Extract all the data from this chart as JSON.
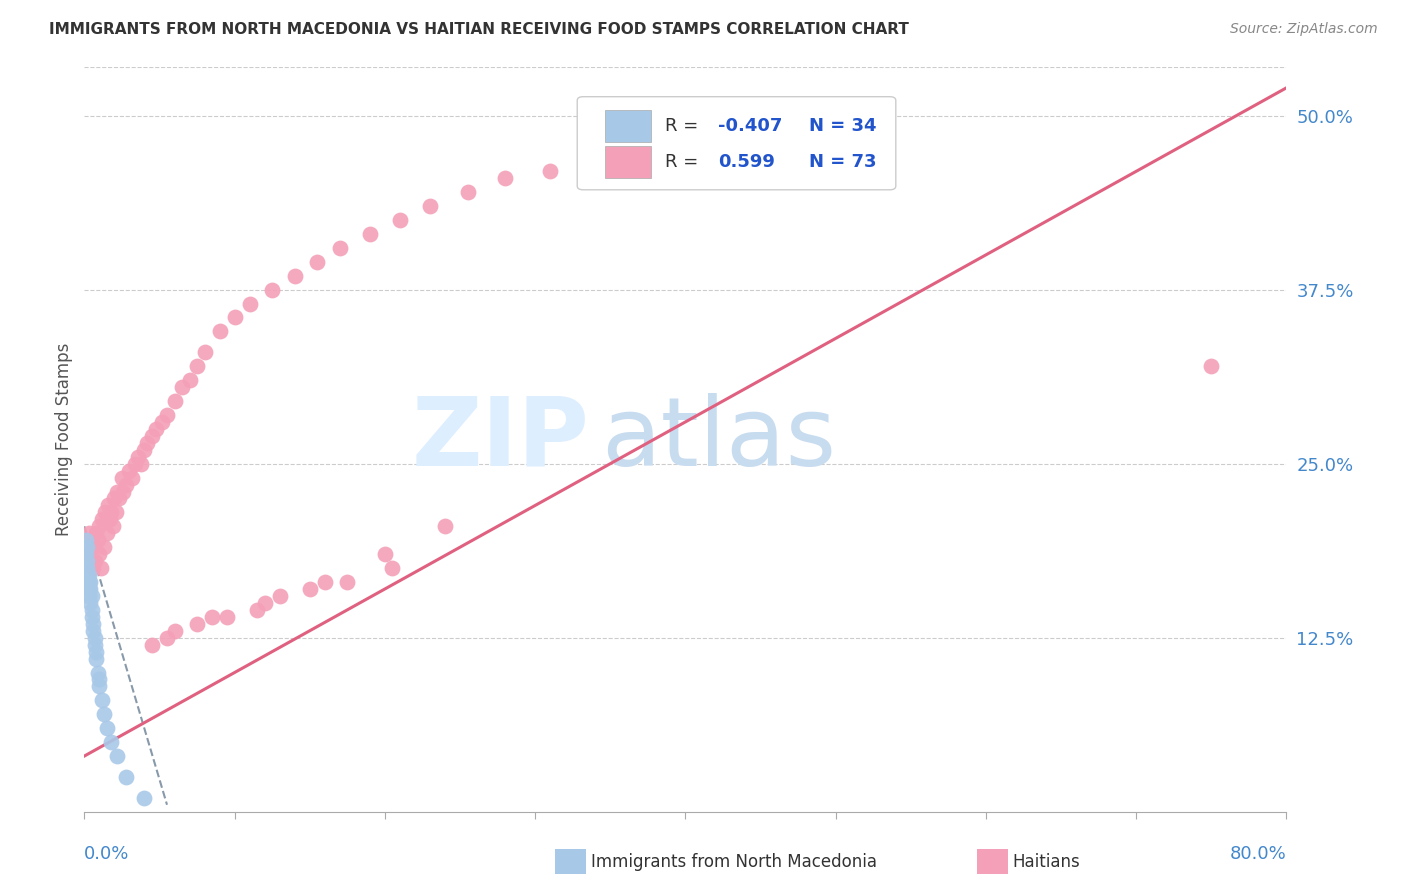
{
  "title": "IMMIGRANTS FROM NORTH MACEDONIA VS HAITIAN RECEIVING FOOD STAMPS CORRELATION CHART",
  "source": "Source: ZipAtlas.com",
  "ylabel": "Receiving Food Stamps",
  "y_ticks_right": [
    0.125,
    0.25,
    0.375,
    0.5
  ],
  "y_tick_labels_right": [
    "12.5%",
    "25.0%",
    "37.5%",
    "50.0%"
  ],
  "xlim": [
    0.0,
    0.8
  ],
  "ylim": [
    0.0,
    0.535
  ],
  "blue_color": "#a8c8e8",
  "pink_color": "#f4a0b8",
  "blue_line_color": "#8899aa",
  "pink_line_color": "#e06080",
  "legend_text_color": "#2255cc",
  "axis_label_color": "#4488cc",
  "background_color": "#ffffff",
  "grid_color": "#cccccc",
  "title_color": "#333333",
  "watermark_color": "#ddeeff",
  "blue_trend_x": [
    0.0,
    0.055
  ],
  "blue_trend_y": [
    0.205,
    0.005
  ],
  "pink_trend_x": [
    0.0,
    0.8
  ],
  "pink_trend_y": [
    0.04,
    0.52
  ],
  "blue_scatter_x": [
    0.001,
    0.001,
    0.001,
    0.001,
    0.002,
    0.002,
    0.002,
    0.002,
    0.003,
    0.003,
    0.003,
    0.003,
    0.004,
    0.004,
    0.004,
    0.005,
    0.005,
    0.005,
    0.006,
    0.006,
    0.007,
    0.007,
    0.008,
    0.008,
    0.009,
    0.01,
    0.01,
    0.012,
    0.013,
    0.015,
    0.018,
    0.022,
    0.028,
    0.04
  ],
  "blue_scatter_y": [
    0.175,
    0.185,
    0.195,
    0.17,
    0.165,
    0.18,
    0.19,
    0.175,
    0.16,
    0.17,
    0.165,
    0.155,
    0.15,
    0.16,
    0.165,
    0.14,
    0.155,
    0.145,
    0.13,
    0.135,
    0.12,
    0.125,
    0.11,
    0.115,
    0.1,
    0.09,
    0.095,
    0.08,
    0.07,
    0.06,
    0.05,
    0.04,
    0.025,
    0.01
  ],
  "pink_scatter_x": [
    0.003,
    0.004,
    0.005,
    0.006,
    0.006,
    0.007,
    0.008,
    0.009,
    0.01,
    0.01,
    0.011,
    0.012,
    0.013,
    0.014,
    0.015,
    0.016,
    0.017,
    0.018,
    0.019,
    0.02,
    0.021,
    0.022,
    0.023,
    0.025,
    0.026,
    0.028,
    0.03,
    0.032,
    0.034,
    0.036,
    0.038,
    0.04,
    0.042,
    0.045,
    0.048,
    0.052,
    0.055,
    0.06,
    0.065,
    0.07,
    0.075,
    0.08,
    0.09,
    0.1,
    0.11,
    0.125,
    0.14,
    0.155,
    0.17,
    0.19,
    0.21,
    0.23,
    0.255,
    0.28,
    0.175,
    0.205,
    0.13,
    0.15,
    0.095,
    0.115,
    0.34,
    0.31,
    0.38,
    0.06,
    0.075,
    0.085,
    0.12,
    0.16,
    0.2,
    0.24,
    0.75,
    0.045,
    0.055
  ],
  "pink_scatter_y": [
    0.2,
    0.185,
    0.195,
    0.175,
    0.19,
    0.18,
    0.2,
    0.195,
    0.185,
    0.205,
    0.175,
    0.21,
    0.19,
    0.215,
    0.2,
    0.22,
    0.21,
    0.215,
    0.205,
    0.225,
    0.215,
    0.23,
    0.225,
    0.24,
    0.23,
    0.235,
    0.245,
    0.24,
    0.25,
    0.255,
    0.25,
    0.26,
    0.265,
    0.27,
    0.275,
    0.28,
    0.285,
    0.295,
    0.305,
    0.31,
    0.32,
    0.33,
    0.345,
    0.355,
    0.365,
    0.375,
    0.385,
    0.395,
    0.405,
    0.415,
    0.425,
    0.435,
    0.445,
    0.455,
    0.165,
    0.175,
    0.155,
    0.16,
    0.14,
    0.145,
    0.465,
    0.46,
    0.47,
    0.13,
    0.135,
    0.14,
    0.15,
    0.165,
    0.185,
    0.205,
    0.32,
    0.12,
    0.125
  ]
}
